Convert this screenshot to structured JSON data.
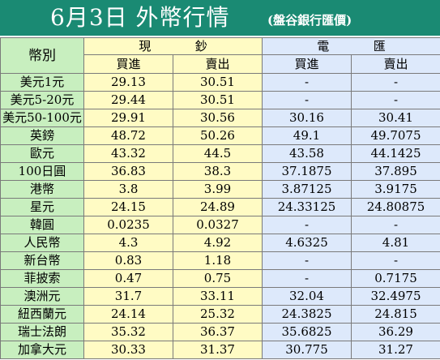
{
  "title": "6月3日 外幣行情",
  "subtitle": "(盤谷銀行匯價)",
  "header": {
    "currency": "幣別",
    "cash_chars": [
      "現",
      "鈔"
    ],
    "wire_chars": [
      "電",
      "匯"
    ],
    "buy": "買進",
    "sell": "賣出"
  },
  "rows": [
    {
      "name": "美元1元",
      "cash_buy": "29.13",
      "cash_sell": "30.51",
      "wire_buy": "-",
      "wire_sell": "-"
    },
    {
      "name": "美元5-20元",
      "cash_buy": "29.44",
      "cash_sell": "30.51",
      "wire_buy": "-",
      "wire_sell": "-"
    },
    {
      "name": "美元50-100元",
      "cash_buy": "29.91",
      "cash_sell": "30.56",
      "wire_buy": "30.16",
      "wire_sell": "30.41"
    },
    {
      "name": "英鎊",
      "cash_buy": "48.72",
      "cash_sell": "50.26",
      "wire_buy": "49.1",
      "wire_sell": "49.7075"
    },
    {
      "name": "歐元",
      "cash_buy": "43.32",
      "cash_sell": "44.5",
      "wire_buy": "43.58",
      "wire_sell": "44.1425"
    },
    {
      "name": "100日圓",
      "cash_buy": "36.83",
      "cash_sell": "38.3",
      "wire_buy": "37.1875",
      "wire_sell": "37.895"
    },
    {
      "name": "港幣",
      "cash_buy": "3.8",
      "cash_sell": "3.99",
      "wire_buy": "3.87125",
      "wire_sell": "3.9175"
    },
    {
      "name": "星元",
      "cash_buy": "24.15",
      "cash_sell": "24.89",
      "wire_buy": "24.33125",
      "wire_sell": "24.80875"
    },
    {
      "name": "韓圓",
      "cash_buy": "0.0235",
      "cash_sell": "0.0327",
      "wire_buy": "-",
      "wire_sell": "-"
    },
    {
      "name": "人民幣",
      "cash_buy": "4.3",
      "cash_sell": "4.92",
      "wire_buy": "4.6325",
      "wire_sell": "4.81"
    },
    {
      "name": "新台幣",
      "cash_buy": "0.83",
      "cash_sell": "1.18",
      "wire_buy": "-",
      "wire_sell": "-"
    },
    {
      "name": "菲披索",
      "cash_buy": "0.47",
      "cash_sell": "0.75",
      "wire_buy": "-",
      "wire_sell": "0.7175"
    },
    {
      "name": "澳洲元",
      "cash_buy": "31.7",
      "cash_sell": "33.11",
      "wire_buy": "32.04",
      "wire_sell": "32.4975"
    },
    {
      "name": "紐西蘭元",
      "cash_buy": "24.14",
      "cash_sell": "25.32",
      "wire_buy": "24.3825",
      "wire_sell": "24.815"
    },
    {
      "name": "瑞士法朗",
      "cash_buy": "35.32",
      "cash_sell": "36.37",
      "wire_buy": "35.6825",
      "wire_sell": "36.29"
    },
    {
      "name": "加拿大元",
      "cash_buy": "30.33",
      "cash_sell": "31.37",
      "wire_buy": "30.775",
      "wire_sell": "31.27"
    }
  ],
  "colors": {
    "title_bar": "#1a8a73",
    "currency_column": "#c8efbf",
    "cash_column": "#fffbc4",
    "wire_column": "#dde9fb"
  }
}
